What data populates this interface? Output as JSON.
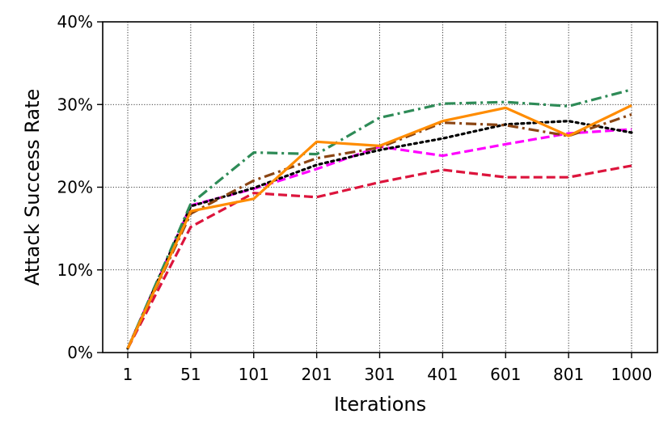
{
  "chart_data": {
    "type": "line",
    "title": "",
    "xlabel": "Iterations",
    "ylabel": "Attack Success Rate",
    "categories": [
      "1",
      "51",
      "101",
      "201",
      "301",
      "401",
      "601",
      "801",
      "1000"
    ],
    "yticks": [
      "0%",
      "10%",
      "20%",
      "30%",
      "40%"
    ],
    "ylim": [
      0,
      40
    ],
    "grid": "dotted",
    "series": [
      {
        "color": "#dc143c",
        "dash": "dashed",
        "values": [
          0.5,
          15.2,
          19.3,
          18.8,
          20.6,
          22.1,
          21.2,
          21.2,
          22.6
        ]
      },
      {
        "color": "#ff00ff",
        "dash": "dashed",
        "values": [
          0.5,
          17.8,
          19.8,
          22.2,
          24.9,
          23.8,
          25.2,
          26.5,
          27.0
        ]
      },
      {
        "color": "#000000",
        "dash": "dotted",
        "values": [
          0.5,
          17.7,
          19.9,
          22.7,
          24.5,
          25.9,
          27.6,
          28.0,
          26.6
        ]
      },
      {
        "color": "#8b4513",
        "dash": "dashdot",
        "values": [
          0.5,
          16.8,
          20.8,
          23.5,
          24.8,
          27.8,
          27.5,
          26.2,
          28.8
        ]
      },
      {
        "color": "#2e8b57",
        "dash": "dashdot",
        "values": [
          0.5,
          18.0,
          24.2,
          24.0,
          28.4,
          30.1,
          30.3,
          29.8,
          31.8
        ]
      },
      {
        "color": "#ff8c00",
        "dash": "solid",
        "values": [
          0.5,
          17.1,
          18.6,
          25.5,
          25.0,
          28.0,
          29.6,
          26.2,
          29.9
        ]
      }
    ]
  }
}
